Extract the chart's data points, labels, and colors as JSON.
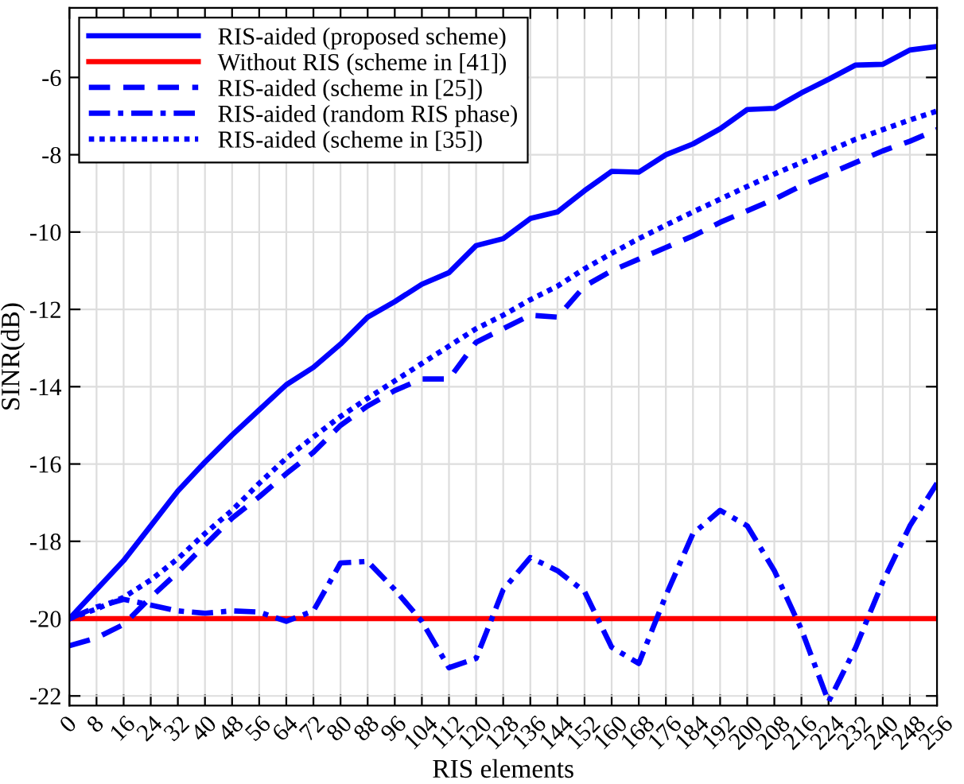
{
  "chart_data": {
    "type": "line",
    "xlabel": "RIS elements",
    "ylabel": "SINR(dB)",
    "x": [
      0,
      8,
      16,
      24,
      32,
      40,
      48,
      56,
      64,
      72,
      80,
      88,
      96,
      104,
      112,
      120,
      128,
      136,
      144,
      152,
      160,
      168,
      176,
      184,
      192,
      200,
      208,
      216,
      224,
      232,
      240,
      248,
      256
    ],
    "xlim": [
      0,
      256
    ],
    "xticks": [
      0,
      8,
      16,
      24,
      32,
      40,
      48,
      56,
      64,
      72,
      80,
      88,
      96,
      104,
      112,
      120,
      128,
      136,
      144,
      152,
      160,
      168,
      176,
      184,
      192,
      200,
      208,
      216,
      224,
      232,
      240,
      248,
      256
    ],
    "ylim": [
      -22.25,
      -4.2
    ],
    "yticks": [
      -22,
      -20,
      -18,
      -16,
      -14,
      -12,
      -10,
      -8,
      -6
    ],
    "grid": true,
    "legend": "top left",
    "series": [
      {
        "name": "RIS-aided (proposed scheme)",
        "color": "#0000ff",
        "line_style": "solid",
        "values": [
          -20,
          -19.25,
          -18.5,
          -17.6,
          -16.7,
          -15.95,
          -15.25,
          -14.6,
          -13.95,
          -13.5,
          -12.9,
          -12.2,
          -11.8,
          -11.35,
          -11.05,
          -10.35,
          -10.17,
          -9.65,
          -9.48,
          -8.93,
          -8.43,
          -8.45,
          -8.0,
          -7.72,
          -7.33,
          -6.83,
          -6.8,
          -6.4,
          -6.05,
          -5.68,
          -5.66,
          -5.29,
          -5.2
        ]
      },
      {
        "name": "Without RIS (scheme in [41])",
        "color": "#ff0000",
        "line_style": "solid",
        "values": [
          -20,
          -20,
          -20,
          -20,
          -20,
          -20,
          -20,
          -20,
          -20,
          -20,
          -20,
          -20,
          -20,
          -20,
          -20,
          -20,
          -20,
          -20,
          -20,
          -20,
          -20,
          -20,
          -20,
          -20,
          -20,
          -20,
          -20,
          -20,
          -20,
          -20,
          -20,
          -20,
          -20
        ]
      },
      {
        "name": "RIS-aided (scheme in [25])",
        "color": "#0000ff",
        "line_style": "dashed",
        "values": [
          -20.7,
          -20.5,
          -20.15,
          -19.45,
          -18.8,
          -18.1,
          -17.4,
          -16.85,
          -16.25,
          -15.7,
          -15.0,
          -14.5,
          -14.1,
          -13.8,
          -13.8,
          -12.85,
          -12.5,
          -12.15,
          -12.2,
          -11.4,
          -11.0,
          -10.7,
          -10.4,
          -10.1,
          -9.75,
          -9.45,
          -9.15,
          -8.8,
          -8.5,
          -8.2,
          -7.9,
          -7.65,
          -7.35
        ]
      },
      {
        "name": "RIS-aided (random RIS phase)",
        "color": "#0000ff",
        "line_style": "dashdot",
        "values": [
          -20,
          -19.7,
          -19.5,
          -19.65,
          -19.8,
          -19.86,
          -19.8,
          -19.83,
          -20.07,
          -19.8,
          -18.56,
          -18.52,
          -19.25,
          -20.07,
          -21.27,
          -21.03,
          -19.25,
          -18.42,
          -18.76,
          -19.3,
          -20.74,
          -21.16,
          -19.4,
          -17.8,
          -17.2,
          -17.6,
          -18.76,
          -20.28,
          -22.15,
          -20.75,
          -19.05,
          -17.6,
          -16.5
        ]
      },
      {
        "name": "RIS-aided (scheme in [35])",
        "color": "#0000ff",
        "line_style": "dotted",
        "values": [
          -20,
          -19.75,
          -19.45,
          -19.0,
          -18.45,
          -17.8,
          -17.2,
          -16.5,
          -15.85,
          -15.3,
          -14.77,
          -14.3,
          -13.85,
          -13.4,
          -12.95,
          -12.5,
          -12.15,
          -11.75,
          -11.4,
          -10.95,
          -10.55,
          -10.17,
          -9.82,
          -9.48,
          -9.15,
          -8.82,
          -8.5,
          -8.2,
          -7.9,
          -7.6,
          -7.35,
          -7.1,
          -6.87
        ]
      }
    ]
  }
}
